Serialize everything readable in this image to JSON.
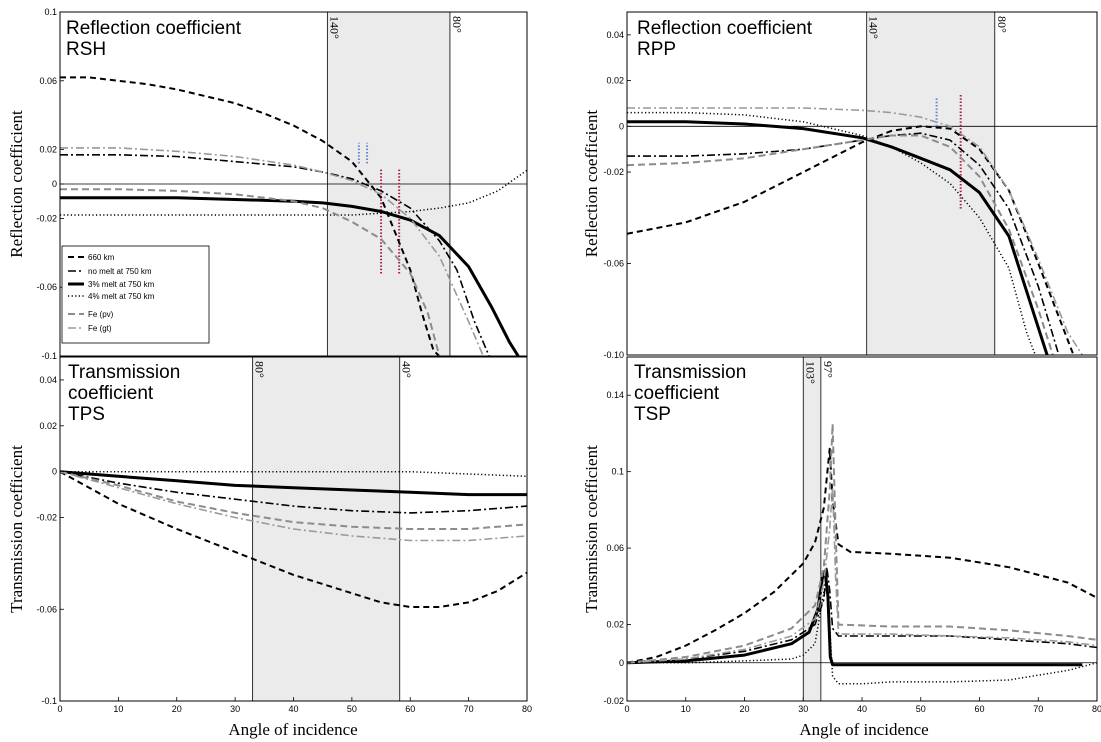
{
  "figure": {
    "x_axis_label": "Angle of incidence"
  },
  "legend": {
    "entries": [
      {
        "label": "660 km",
        "series": "660km"
      },
      {
        "label": "no melt at 750 km",
        "series": "nomelt"
      },
      {
        "label": "3% melt at 750 km",
        "series": "melt3"
      },
      {
        "label": "4% melt at 750 km",
        "series": "melt4"
      },
      {
        "label": "Fe (pv)",
        "series": "fepv"
      },
      {
        "label": "Fe (gt)",
        "series": "fegt"
      }
    ]
  },
  "series_styles": {
    "660km": {
      "color": "#000000",
      "dash": "6,4",
      "width": 2
    },
    "nomelt": {
      "color": "#000000",
      "dash": "8,3,2,3",
      "width": 1.6
    },
    "melt3": {
      "color": "#000000",
      "dash": "",
      "width": 3
    },
    "melt4": {
      "color": "#000000",
      "dash": "1.2,2.4",
      "width": 1.5
    },
    "fepv": {
      "color": "#8c8c8c",
      "dash": "7,4",
      "width": 2
    },
    "fegt": {
      "color": "#9a9a9a",
      "dash": "8,3,2,3",
      "width": 1.6
    }
  },
  "chart_data": [
    {
      "id": "rsh",
      "type": "line",
      "title_lines": [
        "Reflection coefficient",
        "RSH"
      ],
      "ylabel": "Reflection coefficient",
      "xlim": [
        0,
        80
      ],
      "ylim": [
        -0.1,
        0.1
      ],
      "xticks": [],
      "yticks": [
        -0.1,
        -0.06,
        -0.02,
        0,
        0.02,
        0.06,
        0.1
      ],
      "ytick_labels": [
        "-0.1",
        "-0.06",
        "-0.02",
        "0",
        "0.02",
        "0.06",
        "0.1"
      ],
      "zero_line": true,
      "band": [
        45.8,
        66.8
      ],
      "band_labels": [
        {
          "text": "140°",
          "x": 45.8
        },
        {
          "text": "80°",
          "x": 66.8
        }
      ],
      "markers": [
        {
          "x": 51.2,
          "y": [
            0.012,
            0.024
          ],
          "color": "#6b7fd6"
        },
        {
          "x": 52.6,
          "y": [
            0.012,
            0.024
          ],
          "color": "#6b7fd6"
        },
        {
          "x": 55.0,
          "y": [
            -0.052,
            0.009
          ],
          "color": "#b0203c"
        },
        {
          "x": 58.1,
          "y": [
            -0.052,
            0.009
          ],
          "color": "#b0203c"
        }
      ],
      "series": [
        {
          "key": "660km",
          "x": [
            0,
            5,
            10,
            15,
            20,
            25,
            30,
            35,
            40,
            45,
            50,
            55,
            60,
            62,
            64,
            65
          ],
          "y": [
            0.062,
            0.062,
            0.06,
            0.058,
            0.055,
            0.051,
            0.047,
            0.041,
            0.034,
            0.025,
            0.013,
            -0.008,
            -0.05,
            -0.075,
            -0.097,
            -0.1
          ]
        },
        {
          "key": "nomelt",
          "x": [
            0,
            10,
            20,
            30,
            40,
            45,
            50,
            55,
            60,
            65,
            68,
            71,
            73.5
          ],
          "y": [
            0.017,
            0.017,
            0.016,
            0.013,
            0.01,
            0.007,
            0.003,
            -0.004,
            -0.014,
            -0.033,
            -0.05,
            -0.08,
            -0.1
          ]
        },
        {
          "key": "melt3",
          "x": [
            0,
            10,
            20,
            30,
            40,
            45,
            50,
            55,
            60,
            65,
            70,
            74,
            77,
            78.5
          ],
          "y": [
            -0.008,
            -0.008,
            -0.008,
            -0.009,
            -0.01,
            -0.011,
            -0.013,
            -0.016,
            -0.021,
            -0.03,
            -0.048,
            -0.072,
            -0.092,
            -0.1
          ]
        },
        {
          "key": "melt4",
          "x": [
            0,
            10,
            20,
            30,
            40,
            45,
            50,
            55,
            60,
            65,
            70,
            75,
            80
          ],
          "y": [
            -0.018,
            -0.018,
            -0.018,
            -0.018,
            -0.018,
            -0.018,
            -0.018,
            -0.017,
            -0.016,
            -0.014,
            -0.011,
            -0.004,
            0.008
          ]
        },
        {
          "key": "fepv",
          "x": [
            0,
            10,
            20,
            30,
            40,
            45,
            50,
            55,
            60,
            63,
            65
          ],
          "y": [
            -0.003,
            -0.003,
            -0.004,
            -0.006,
            -0.01,
            -0.014,
            -0.022,
            -0.032,
            -0.052,
            -0.075,
            -0.1
          ]
        },
        {
          "key": "fegt",
          "x": [
            0,
            10,
            20,
            30,
            40,
            45,
            50,
            55,
            60,
            65,
            70,
            72.5
          ],
          "y": [
            0.021,
            0.021,
            0.019,
            0.016,
            0.011,
            0.007,
            0.002,
            -0.006,
            -0.02,
            -0.042,
            -0.08,
            -0.1
          ]
        }
      ]
    },
    {
      "id": "rpp",
      "type": "line",
      "title_lines": [
        "Reflection coefficient",
        "RPP"
      ],
      "ylabel": "Reflection coefficient",
      "xlim": [
        0,
        80
      ],
      "ylim": [
        -0.1,
        0.05
      ],
      "xticks": [],
      "yticks": [
        -0.1,
        -0.06,
        -0.02,
        0,
        0.02,
        0.04
      ],
      "ytick_labels": [
        "-0.10",
        "-0.06",
        "-0.02",
        "0",
        "0.02",
        "0.04"
      ],
      "zero_line": true,
      "band": [
        40.8,
        62.6
      ],
      "band_labels": [
        {
          "text": "140°",
          "x": 40.8
        },
        {
          "text": "80°",
          "x": 62.6
        }
      ],
      "markers": [
        {
          "x": 52.7,
          "y": [
            0.0,
            0.013
          ],
          "color": "#6b7fd6"
        },
        {
          "x": 56.8,
          "y": [
            -0.036,
            0.014
          ],
          "color": "#b0203c"
        }
      ],
      "series": [
        {
          "key": "660km",
          "x": [
            0,
            10,
            20,
            30,
            40,
            45,
            50,
            55,
            60,
            65,
            70,
            73,
            76
          ],
          "y": [
            -0.047,
            -0.042,
            -0.033,
            -0.02,
            -0.007,
            -0.002,
            0.0,
            -0.001,
            -0.01,
            -0.028,
            -0.06,
            -0.08,
            -0.1
          ]
        },
        {
          "key": "nomelt",
          "x": [
            0,
            10,
            20,
            30,
            40,
            45,
            50,
            55,
            60,
            65,
            70,
            73.5
          ],
          "y": [
            -0.013,
            -0.013,
            -0.012,
            -0.01,
            -0.006,
            -0.004,
            -0.003,
            -0.006,
            -0.017,
            -0.036,
            -0.07,
            -0.1
          ]
        },
        {
          "key": "melt3",
          "x": [
            0,
            10,
            20,
            30,
            40,
            45,
            50,
            55,
            60,
            65,
            69,
            71.5
          ],
          "y": [
            0.002,
            0.002,
            0.001,
            -0.001,
            -0.005,
            -0.009,
            -0.014,
            -0.019,
            -0.029,
            -0.048,
            -0.08,
            -0.1
          ]
        },
        {
          "key": "melt4",
          "x": [
            0,
            10,
            20,
            30,
            40,
            45,
            50,
            55,
            60,
            65,
            68,
            69.5
          ],
          "y": [
            0.006,
            0.006,
            0.005,
            0.002,
            -0.004,
            -0.009,
            -0.016,
            -0.025,
            -0.04,
            -0.062,
            -0.09,
            -0.1
          ]
        },
        {
          "key": "fepv",
          "x": [
            0,
            10,
            20,
            30,
            40,
            45,
            50,
            55,
            60,
            65,
            70,
            72.5
          ],
          "y": [
            -0.017,
            -0.016,
            -0.014,
            -0.01,
            -0.006,
            -0.004,
            -0.004,
            -0.009,
            -0.022,
            -0.045,
            -0.08,
            -0.1
          ]
        },
        {
          "key": "fegt",
          "x": [
            0,
            10,
            20,
            30,
            40,
            45,
            50,
            55,
            60,
            65,
            70,
            75,
            77.5
          ],
          "y": [
            0.008,
            0.008,
            0.008,
            0.008,
            0.007,
            0.006,
            0.004,
            0.0,
            -0.009,
            -0.028,
            -0.058,
            -0.09,
            -0.1
          ]
        }
      ]
    },
    {
      "id": "tps",
      "type": "line",
      "title_lines": [
        "Transmission",
        "coefficient",
        "TPS"
      ],
      "ylabel": "Transmission coefficient",
      "xlim": [
        0,
        80
      ],
      "ylim": [
        -0.1,
        0.05
      ],
      "xticks": [
        0,
        10,
        20,
        30,
        40,
        50,
        60,
        70,
        80
      ],
      "yticks": [
        -0.1,
        -0.06,
        -0.02,
        0,
        0.02,
        0.04
      ],
      "ytick_labels": [
        "-0.1",
        "-0.06",
        "-0.02",
        "0",
        "0.02",
        "0.04"
      ],
      "zero_line": false,
      "band": [
        33.0,
        58.2
      ],
      "band_labels": [
        {
          "text": "80°",
          "x": 33.0
        },
        {
          "text": "40°",
          "x": 58.2
        }
      ],
      "markers": [],
      "series": [
        {
          "key": "660km",
          "x": [
            0,
            5,
            10,
            20,
            30,
            40,
            50,
            55,
            60,
            65,
            70,
            75,
            80
          ],
          "y": [
            0,
            -0.007,
            -0.014,
            -0.025,
            -0.035,
            -0.045,
            -0.053,
            -0.057,
            -0.059,
            -0.059,
            -0.057,
            -0.052,
            -0.044
          ]
        },
        {
          "key": "nomelt",
          "x": [
            0,
            10,
            20,
            30,
            40,
            50,
            60,
            70,
            80
          ],
          "y": [
            0,
            -0.005,
            -0.009,
            -0.012,
            -0.015,
            -0.017,
            -0.018,
            -0.017,
            -0.015
          ]
        },
        {
          "key": "melt3",
          "x": [
            0,
            10,
            20,
            30,
            40,
            50,
            60,
            70,
            80
          ],
          "y": [
            0,
            -0.002,
            -0.004,
            -0.006,
            -0.007,
            -0.008,
            -0.009,
            -0.01,
            -0.01
          ]
        },
        {
          "key": "melt4",
          "x": [
            0,
            10,
            20,
            30,
            40,
            50,
            60,
            70,
            80
          ],
          "y": [
            0,
            0,
            0,
            0,
            0,
            0,
            0,
            -0.001,
            -0.002
          ]
        },
        {
          "key": "fepv",
          "x": [
            0,
            10,
            20,
            30,
            40,
            50,
            60,
            70,
            80
          ],
          "y": [
            0,
            -0.006,
            -0.013,
            -0.018,
            -0.022,
            -0.024,
            -0.025,
            -0.025,
            -0.023
          ]
        },
        {
          "key": "fegt",
          "x": [
            0,
            10,
            20,
            30,
            40,
            50,
            60,
            70,
            80
          ],
          "y": [
            0,
            -0.007,
            -0.014,
            -0.02,
            -0.025,
            -0.028,
            -0.03,
            -0.03,
            -0.028
          ]
        }
      ]
    },
    {
      "id": "tsp",
      "type": "line",
      "title_lines": [
        "Transmission",
        "coefficient",
        "TSP"
      ],
      "ylabel": "Transmission coefficient",
      "xlim": [
        0,
        80
      ],
      "ylim": [
        -0.02,
        0.16
      ],
      "xticks": [
        0,
        10,
        20,
        30,
        40,
        50,
        60,
        70,
        80
      ],
      "yticks": [
        -0.02,
        0,
        0.02,
        0.06,
        0.1,
        0.14
      ],
      "ytick_labels": [
        "-0.02",
        "0",
        "0.02",
        "0.06",
        "0.1",
        "0.14"
      ],
      "zero_line": true,
      "band": [
        30.0,
        33.0
      ],
      "band_labels": [
        {
          "text": "103°",
          "x": 30.0
        },
        {
          "text": "97°",
          "x": 33.0
        }
      ],
      "markers": [],
      "series": [
        {
          "key": "660km",
          "x": [
            0,
            5,
            10,
            15,
            20,
            25,
            30,
            32,
            33.5,
            34.5,
            35,
            36,
            38,
            45,
            55,
            65,
            75,
            80
          ],
          "y": [
            0,
            0.003,
            0.009,
            0.017,
            0.026,
            0.037,
            0.052,
            0.063,
            0.081,
            0.112,
            0.085,
            0.062,
            0.058,
            0.057,
            0.055,
            0.05,
            0.042,
            0.034
          ]
        },
        {
          "key": "nomelt",
          "x": [
            0,
            10,
            20,
            28,
            32,
            33.5,
            34,
            34.5,
            35,
            36,
            45,
            55,
            65,
            75,
            80
          ],
          "y": [
            0,
            0.002,
            0.006,
            0.012,
            0.02,
            0.033,
            0.05,
            0.038,
            0.018,
            0.014,
            0.014,
            0.014,
            0.012,
            0.01,
            0.008
          ]
        },
        {
          "key": "melt3",
          "x": [
            0,
            10,
            20,
            28,
            31,
            32.5,
            33.3,
            33.7,
            34.2,
            34.6,
            35,
            50,
            70,
            77.5
          ],
          "y": [
            0,
            0.001,
            0.004,
            0.01,
            0.016,
            0.028,
            0.045,
            0.048,
            0.035,
            0.003,
            -0.001,
            -0.001,
            -0.001,
            -0.001
          ]
        },
        {
          "key": "melt4",
          "x": [
            0,
            10,
            20,
            28,
            30,
            32,
            33,
            34,
            34.5,
            35,
            36,
            40,
            45,
            55,
            65,
            75,
            80
          ],
          "y": [
            0,
            0,
            0.001,
            0.002,
            0.004,
            0.01,
            0.028,
            0.046,
            0.02,
            -0.007,
            -0.011,
            -0.011,
            -0.01,
            -0.01,
            -0.009,
            -0.004,
            0.0
          ]
        },
        {
          "key": "fepv",
          "x": [
            0,
            10,
            20,
            28,
            32,
            33.5,
            34.5,
            35,
            35.5,
            36,
            45,
            55,
            65,
            75,
            80
          ],
          "y": [
            0,
            0.003,
            0.009,
            0.018,
            0.03,
            0.05,
            0.09,
            0.125,
            0.07,
            0.02,
            0.019,
            0.019,
            0.017,
            0.014,
            0.012
          ]
        },
        {
          "key": "fegt",
          "x": [
            0,
            10,
            20,
            28,
            32,
            33.5,
            34.5,
            35,
            35.5,
            36,
            45,
            55,
            65,
            75,
            80
          ],
          "y": [
            0,
            0.002,
            0.007,
            0.014,
            0.023,
            0.042,
            0.07,
            0.092,
            0.045,
            0.015,
            0.015,
            0.014,
            0.013,
            0.011,
            0.009
          ]
        }
      ]
    }
  ]
}
